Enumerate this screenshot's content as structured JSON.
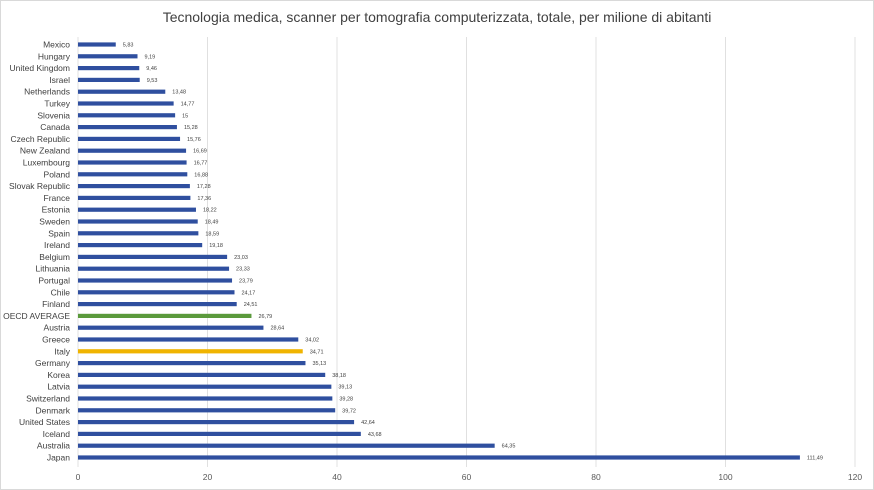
{
  "chart_data": {
    "type": "bar",
    "orientation": "horizontal",
    "title": "Tecnologia medica, scanner per tomografia computerizzata, totale, per milione di abitanti",
    "xlabel": "",
    "ylabel": "",
    "xlim": [
      0,
      120
    ],
    "ticks": [
      0,
      20,
      40,
      60,
      80,
      100,
      120
    ],
    "grid": true,
    "legend": "none",
    "colors": {
      "default": "#2f4f9f",
      "highlight_oecd": "#5b9a3c",
      "highlight_italy": "#f0b400",
      "grid": "#d9d9d9"
    },
    "categories": [
      "Mexico",
      "Hungary",
      "United Kingdom",
      "Israel",
      "Netherlands",
      "Turkey",
      "Slovenia",
      "Canada",
      "Czech Republic",
      "New Zealand",
      "Luxembourg",
      "Poland",
      "Slovak Republic",
      "France",
      "Estonia",
      "Sweden",
      "Spain",
      "Ireland",
      "Belgium",
      "Lithuania",
      "Portugal",
      "Chile",
      "Finland",
      "OECD AVERAGE",
      "Austria",
      "Greece",
      "Italy",
      "Germany",
      "Korea",
      "Latvia",
      "Switzerland",
      "Denmark",
      "United States",
      "Iceland",
      "Australia",
      "Japan"
    ],
    "values": [
      5.83,
      9.19,
      9.46,
      9.53,
      13.48,
      14.77,
      15,
      15.28,
      15.76,
      16.69,
      16.77,
      16.88,
      17.28,
      17.36,
      18.22,
      18.49,
      18.59,
      19.18,
      23.03,
      23.33,
      23.79,
      24.17,
      24.51,
      26.79,
      28.64,
      34.02,
      34.71,
      35.13,
      38.18,
      39.13,
      39.28,
      39.72,
      42.64,
      43.68,
      64.35,
      111.49
    ],
    "value_labels": [
      "5,83",
      "9,19",
      "9,46",
      "9,53",
      "13,48",
      "14,77",
      "15",
      "15,28",
      "15,76",
      "16,69",
      "16,77",
      "16,88",
      "17,28",
      "17,36",
      "18,22",
      "18,49",
      "18,59",
      "19,18",
      "23,03",
      "23,33",
      "23,79",
      "24,17",
      "24,51",
      "26,79",
      "28,64",
      "34,02",
      "34,71",
      "35,13",
      "38,18",
      "39,13",
      "39,28",
      "39,72",
      "42,64",
      "43,68",
      "64,35",
      "111,49"
    ],
    "highlight": {
      "OECD AVERAGE": "highlight_oecd",
      "Italy": "highlight_italy"
    }
  }
}
